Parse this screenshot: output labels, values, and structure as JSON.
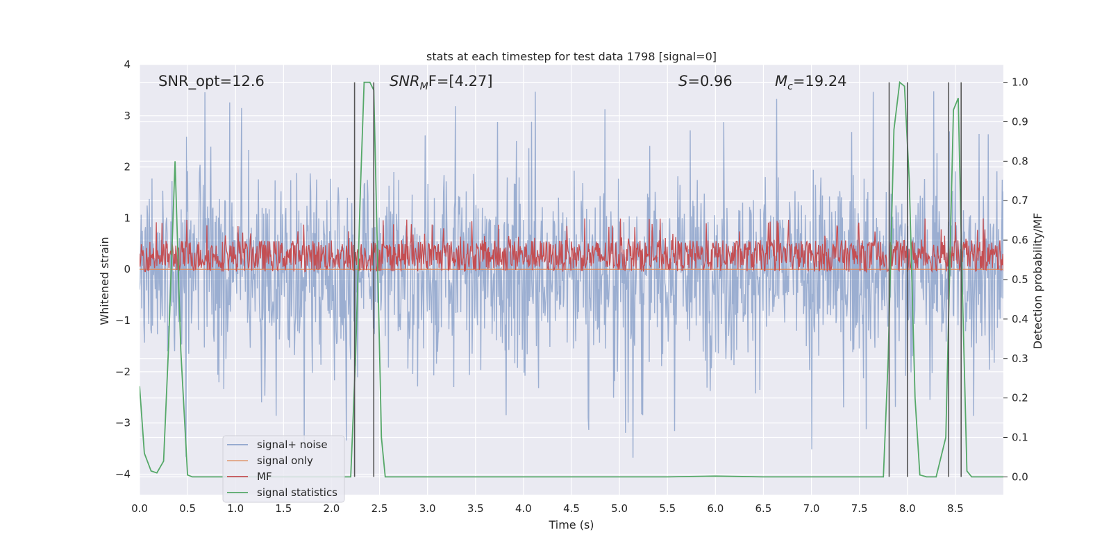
{
  "chart_data": {
    "type": "line",
    "title": "stats at each timestep for test data 1798 [signal=0]",
    "xlabel": "Time (s)",
    "ylabel_left": "Whitened strain",
    "ylabel_right": "Detection probability/MF",
    "xlim": [
      0,
      9.0
    ],
    "ylim_left": [
      -4.4,
      4.0
    ],
    "ylim_right": [
      -0.045,
      1.045
    ],
    "x_ticks": [
      0.0,
      0.5,
      1.0,
      1.5,
      2.0,
      2.5,
      3.0,
      3.5,
      4.0,
      4.5,
      5.0,
      5.5,
      6.0,
      6.5,
      7.0,
      7.5,
      8.0,
      8.5
    ],
    "x_tick_labels": [
      "0.0",
      "0.5",
      "1.0",
      "1.5",
      "2.0",
      "2.5",
      "3.0",
      "3.5",
      "4.0",
      "4.5",
      "5.0",
      "5.5",
      "6.0",
      "6.5",
      "7.0",
      "7.5",
      "8.0",
      "8.5"
    ],
    "y_left_ticks": [
      4,
      3,
      2,
      1,
      0,
      -1,
      -2,
      -3,
      -4
    ],
    "y_left_tick_labels": [
      "4",
      "3",
      "2",
      "1",
      "0",
      "−1",
      "−2",
      "−3",
      "−4"
    ],
    "y_right_ticks": [
      1.0,
      0.9,
      0.8,
      0.7,
      0.6,
      0.5,
      0.4,
      0.3,
      0.2,
      0.1,
      0.0
    ],
    "y_right_tick_labels": [
      "1.0",
      "0.9",
      "0.8",
      "0.7",
      "0.6",
      "0.5",
      "0.4",
      "0.3",
      "0.2",
      "0.1",
      "0.0"
    ],
    "grid": true,
    "background": "#eaeaf2",
    "annotations": {
      "snr_opt": "SNR_opt=12.6",
      "snr_mf_base": "SNR",
      "snr_mf_sub": "M",
      "snr_mf_rest": "F=[4.27]",
      "s_label": "S",
      "s_value": "=0.96",
      "mc_base": "M",
      "mc_sub": "c",
      "mc_value": "=19.24"
    },
    "legend": {
      "placement": "lower-left",
      "entries": [
        {
          "name": "signal+ noise",
          "color": "#4c72b0"
        },
        {
          "name": "signal only",
          "color": "#dd8452"
        },
        {
          "name": "MF",
          "color": "#c44e52"
        },
        {
          "name": "signal statistics",
          "color": "#55a868"
        }
      ]
    },
    "series": [
      {
        "name": "signal+ noise",
        "axis": "left",
        "color": "#4c72b0",
        "alpha": 0.5,
        "style": "noise",
        "typical_amplitude": 1.8,
        "max_amplitude": 3.7,
        "x_range": [
          0,
          9.0
        ]
      },
      {
        "name": "signal only",
        "axis": "left",
        "color": "#dd8452",
        "value": 0.0,
        "x_range": [
          0,
          9.0
        ]
      },
      {
        "name": "MF",
        "axis": "right",
        "color": "#c44e52",
        "style": "noise",
        "band": [
          0.52,
          0.6
        ],
        "peak": 0.655,
        "x_range": [
          0,
          9.0
        ]
      },
      {
        "name": "signal statistics",
        "axis": "right",
        "color": "#55a868",
        "x": [
          0.0,
          0.05,
          0.12,
          0.18,
          0.25,
          0.3,
          0.37,
          0.43,
          0.5,
          0.55,
          0.6,
          1.0,
          1.5,
          2.0,
          2.2,
          2.25,
          2.3,
          2.34,
          2.4,
          2.44,
          2.48,
          2.52,
          2.56,
          2.6,
          3.0,
          4.0,
          5.0,
          5.5,
          6.0,
          6.5,
          7.0,
          7.5,
          7.75,
          7.8,
          7.86,
          7.92,
          7.97,
          8.02,
          8.08,
          8.13,
          8.2,
          8.3,
          8.4,
          8.48,
          8.53,
          8.57,
          8.62,
          8.67,
          8.72,
          9.0
        ],
        "y": [
          0.23,
          0.06,
          0.015,
          0.01,
          0.04,
          0.32,
          0.8,
          0.32,
          0.005,
          0.0,
          0.0,
          0.0,
          0.0,
          0.0,
          0.0,
          0.3,
          0.72,
          1.0,
          1.0,
          0.98,
          0.55,
          0.1,
          0.0,
          0.0,
          0.0,
          0.0,
          0.0,
          0.0,
          0.002,
          0.0,
          0.0,
          0.0,
          0.0,
          0.3,
          0.88,
          1.0,
          0.99,
          0.75,
          0.2,
          0.005,
          0.0,
          0.0,
          0.1,
          0.93,
          0.96,
          0.5,
          0.015,
          0.0,
          0.0,
          0.0
        ]
      }
    ],
    "vertical_lines": [
      2.24,
      2.44,
      7.81,
      8.0,
      8.43,
      8.56
    ]
  }
}
